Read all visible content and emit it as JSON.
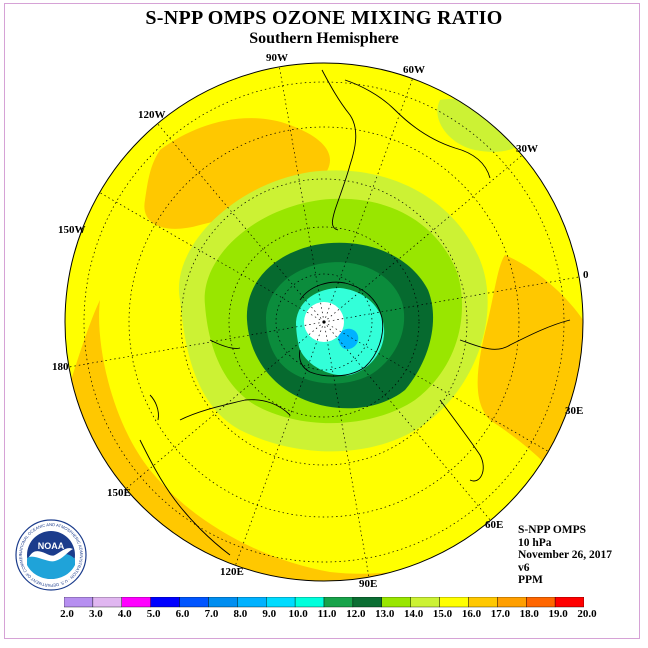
{
  "header": {
    "title": "S-NPP OMPS OZONE MIXING RATIO",
    "subtitle": "Southern Hemisphere"
  },
  "map": {
    "projection": "south polar stereographic",
    "longitude_labels": [
      "90W",
      "60W",
      "30W",
      "0",
      "30E",
      "60E",
      "90E",
      "120E",
      "150E",
      "180",
      "150W",
      "120W"
    ],
    "contour_colors": {
      "below_10": "#ffffff",
      "10_11": "#33ffd9",
      "11_12": "#0b8c3c",
      "12_13": "#066a2f",
      "13_14": "#99e600",
      "14_15": "#ccf234",
      "15_16": "#ffff00",
      "16_17": "#ffc800"
    }
  },
  "info": {
    "instrument": "S-NPP OMPS",
    "level": "10 hPa",
    "date": "November 26, 2017",
    "version": "v6",
    "units": "PPM"
  },
  "colorbar": {
    "labels": [
      "2.0",
      "3.0",
      "4.0",
      "5.0",
      "6.0",
      "7.0",
      "8.0",
      "9.0",
      "10.0",
      "11.0",
      "12.0",
      "13.0",
      "14.0",
      "15.0",
      "16.0",
      "17.0",
      "18.0",
      "19.0",
      "20.0"
    ],
    "colors": [
      "#b68ff0",
      "#e0b6f0",
      "#ff00ff",
      "#0000ff",
      "#0055ff",
      "#008ef0",
      "#00b2ff",
      "#00dcff",
      "#00ffdc",
      "#17a34a",
      "#0b6e33",
      "#99e600",
      "#ccf234",
      "#ffff00",
      "#ffc800",
      "#ff9f00",
      "#ff6600",
      "#ff0000",
      "#8b5a2b"
    ]
  },
  "logo": {
    "text": "NOAA",
    "ring_text": "NATIONAL OCEANIC AND ATMOSPHERIC ADMINISTRATION · U.S. DEPARTMENT OF COMMERCE"
  }
}
